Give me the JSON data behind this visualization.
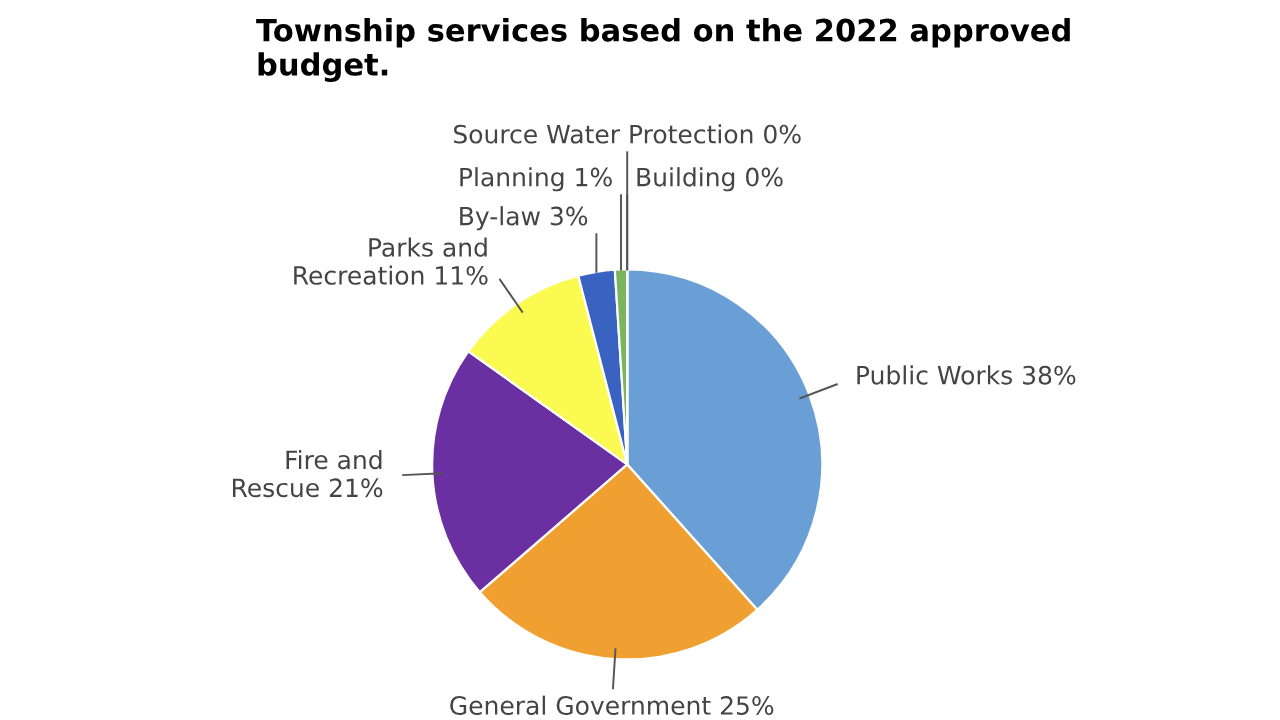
{
  "chart_data": {
    "type": "pie",
    "title": "Township services based on the 2022 approved\nbudget.",
    "categories": [
      "Public Works",
      "General Government",
      "Fire and\nRescue",
      "Parks and\nRecreation",
      "By-law",
      "Planning",
      "Source Water Protection",
      "Building"
    ],
    "values": [
      38,
      25,
      21,
      11,
      3,
      1,
      0,
      0
    ],
    "value_labels": [
      "38%",
      "25%",
      "21%",
      "11%",
      "3%",
      "1%",
      "0%",
      "0%"
    ],
    "colors": [
      "#6a9fd6",
      "#f0a030",
      "#6a2fa0",
      "#fafa50",
      "#3a62c0",
      "#7ab55c",
      "#d0a0a0",
      "#e08080"
    ],
    "legend": false
  }
}
